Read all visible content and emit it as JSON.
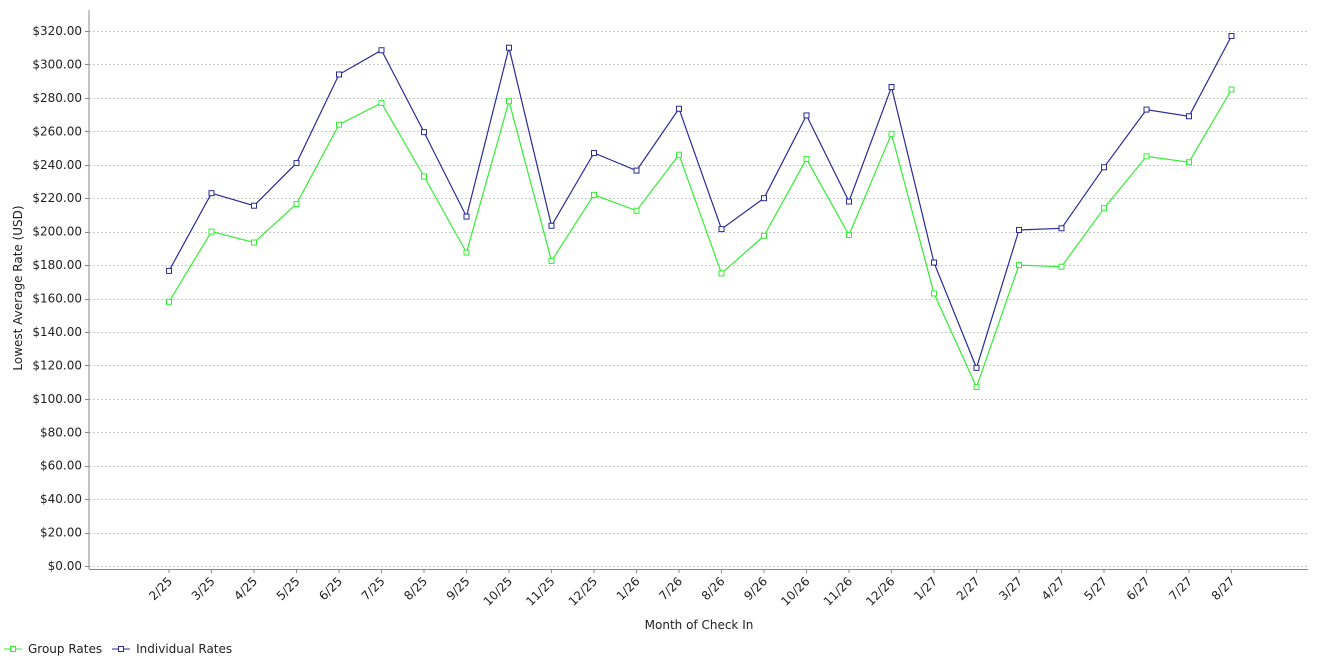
{
  "chart_data": {
    "type": "line",
    "xlabel": "Month of Check In",
    "ylabel": "Lowest Average Rate (USD)",
    "ylim": [
      0,
      320
    ],
    "y_tick_labels": [
      "$0.00",
      "$20.00",
      "$40.00",
      "$60.00",
      "$80.00",
      "$100.00",
      "$120.00",
      "$140.00",
      "$160.00",
      "$180.00",
      "$200.00",
      "$220.00",
      "$240.00",
      "$260.00",
      "$280.00",
      "$300.00",
      "$320.00"
    ],
    "grid": true,
    "legend_position": "bottom-left",
    "categories": [
      "2/25",
      "3/25",
      "4/25",
      "5/25",
      "6/25",
      "7/25",
      "8/25",
      "9/25",
      "10/25",
      "11/25",
      "12/25",
      "1/26",
      "7/26",
      "8/26",
      "9/26",
      "10/26",
      "11/26",
      "12/26",
      "1/27",
      "2/27",
      "3/27",
      "4/27",
      "5/27",
      "6/27",
      "7/27",
      "8/27"
    ],
    "series": [
      {
        "name": "Group Rates",
        "color": "#33ee33",
        "values": [
          158,
          200,
          193.5,
          216.5,
          264,
          277,
          233,
          187.5,
          278,
          182.5,
          222,
          212.5,
          246,
          175,
          197.5,
          243.5,
          198,
          258.5,
          163,
          107,
          180,
          179,
          214,
          245,
          241.5,
          285
        ]
      },
      {
        "name": "Individual Rates",
        "color": "#2a2a9a",
        "values": [
          176.5,
          223,
          215.5,
          241,
          294,
          308.5,
          259.5,
          209,
          310,
          203.5,
          247,
          236.5,
          273.5,
          201.5,
          220,
          269.5,
          218,
          286.5,
          181.5,
          118.5,
          201,
          202,
          238.5,
          273,
          269,
          317
        ]
      }
    ]
  }
}
